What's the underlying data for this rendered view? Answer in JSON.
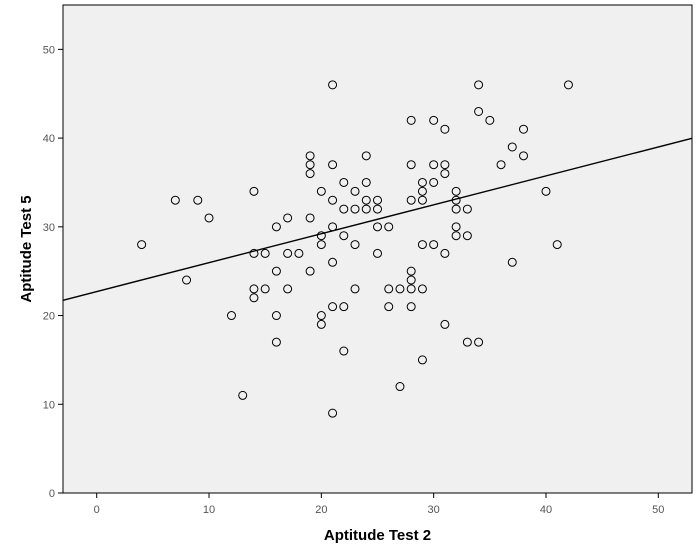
{
  "chart_data": {
    "type": "scatter",
    "title": "",
    "xlabel": "Aptitude Test 2",
    "ylabel": "Aptitude Test 5",
    "xlim": [
      -3,
      53
    ],
    "ylim": [
      0,
      55
    ],
    "xticks": [
      0,
      10,
      20,
      30,
      40,
      50
    ],
    "yticks": [
      0,
      10,
      20,
      30,
      40,
      50
    ],
    "grid": false,
    "background": "#f0f0f0",
    "marker": "open-circle",
    "marker_color": "#000000",
    "fit_line": {
      "intercept": 22.7,
      "slope": 0.326
    },
    "points": [
      [
        4,
        28
      ],
      [
        7,
        33
      ],
      [
        8,
        24
      ],
      [
        9,
        33
      ],
      [
        10,
        31
      ],
      [
        12,
        20
      ],
      [
        13,
        11
      ],
      [
        14,
        34
      ],
      [
        14,
        27
      ],
      [
        14,
        23
      ],
      [
        14,
        22
      ],
      [
        15,
        27
      ],
      [
        15,
        23
      ],
      [
        16,
        30
      ],
      [
        16,
        25
      ],
      [
        16,
        20
      ],
      [
        16,
        17
      ],
      [
        17,
        31
      ],
      [
        17,
        27
      ],
      [
        17,
        23
      ],
      [
        18,
        27
      ],
      [
        19,
        38
      ],
      [
        19,
        37
      ],
      [
        19,
        36
      ],
      [
        19,
        31
      ],
      [
        19,
        25
      ],
      [
        20,
        34
      ],
      [
        20,
        29
      ],
      [
        20,
        28
      ],
      [
        20,
        20
      ],
      [
        20,
        19
      ],
      [
        21,
        46
      ],
      [
        21,
        37
      ],
      [
        21,
        33
      ],
      [
        21,
        30
      ],
      [
        21,
        26
      ],
      [
        21,
        21
      ],
      [
        21,
        9
      ],
      [
        22,
        35
      ],
      [
        22,
        32
      ],
      [
        22,
        29
      ],
      [
        22,
        21
      ],
      [
        22,
        16
      ],
      [
        23,
        34
      ],
      [
        23,
        32
      ],
      [
        23,
        28
      ],
      [
        23,
        23
      ],
      [
        24,
        38
      ],
      [
        24,
        35
      ],
      [
        24,
        33
      ],
      [
        24,
        32
      ],
      [
        25,
        33
      ],
      [
        25,
        32
      ],
      [
        25,
        30
      ],
      [
        25,
        27
      ],
      [
        26,
        30
      ],
      [
        26,
        23
      ],
      [
        26,
        21
      ],
      [
        27,
        23
      ],
      [
        27,
        12
      ],
      [
        28,
        42
      ],
      [
        28,
        37
      ],
      [
        28,
        33
      ],
      [
        28,
        25
      ],
      [
        28,
        24
      ],
      [
        28,
        23
      ],
      [
        28,
        21
      ],
      [
        29,
        35
      ],
      [
        29,
        34
      ],
      [
        29,
        33
      ],
      [
        29,
        28
      ],
      [
        29,
        23
      ],
      [
        29,
        15
      ],
      [
        30,
        42
      ],
      [
        30,
        37
      ],
      [
        30,
        35
      ],
      [
        30,
        28
      ],
      [
        31,
        41
      ],
      [
        31,
        37
      ],
      [
        31,
        36
      ],
      [
        31,
        27
      ],
      [
        31,
        19
      ],
      [
        32,
        34
      ],
      [
        32,
        33
      ],
      [
        32,
        32
      ],
      [
        32,
        30
      ],
      [
        32,
        29
      ],
      [
        33,
        32
      ],
      [
        33,
        29
      ],
      [
        33,
        17
      ],
      [
        34,
        46
      ],
      [
        34,
        43
      ],
      [
        34,
        17
      ],
      [
        35,
        42
      ],
      [
        36,
        37
      ],
      [
        37,
        39
      ],
      [
        37,
        26
      ],
      [
        38,
        41
      ],
      [
        38,
        38
      ],
      [
        40,
        34
      ],
      [
        41,
        28
      ],
      [
        42,
        46
      ]
    ]
  }
}
